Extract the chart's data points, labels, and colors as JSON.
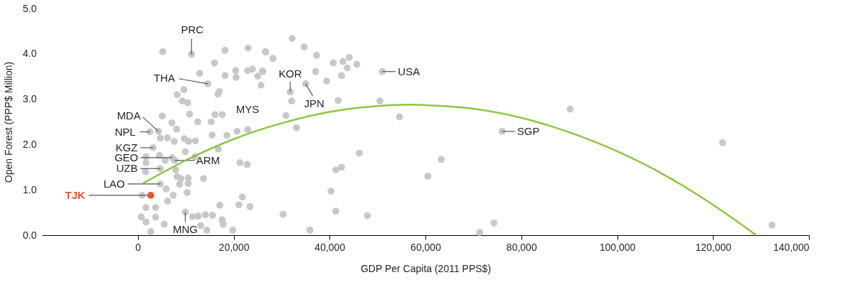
{
  "chart_data": {
    "type": "scatter",
    "xlabel": "GDP Per Capita (2011 PPS$)",
    "ylabel": "Open Forest (PPP$ Million)",
    "marker": "circle",
    "xlim": [
      -20000,
      140000
    ],
    "ylim": [
      0,
      5
    ],
    "xticks": [
      {
        "value": 0,
        "label": "0"
      },
      {
        "value": 20000,
        "label": "20,000"
      },
      {
        "value": 40000,
        "label": "40,000"
      },
      {
        "value": 60000,
        "label": "60,000"
      },
      {
        "value": 80000,
        "label": "80,000"
      },
      {
        "value": 100000,
        "label": "100,000"
      },
      {
        "value": 120000,
        "label": "120,000"
      },
      {
        "value": 140000,
        "label": "140,000"
      }
    ],
    "yticks": [
      {
        "value": 0,
        "label": "0.0"
      },
      {
        "value": 1,
        "label": "1.0"
      },
      {
        "value": 2,
        "label": "2.0"
      },
      {
        "value": 3,
        "label": "3.0"
      },
      {
        "value": 4,
        "label": "4.0"
      },
      {
        "value": 5,
        "label": "5.0"
      }
    ],
    "series": [
      {
        "type": "scatter",
        "color": "#c8c8ca",
        "x": [
          5200,
          11200,
          18200,
          23000,
          26700,
          16000,
          12900,
          18200,
          20400,
          20500,
          22900,
          23900,
          25000,
          26100,
          25700,
          14600,
          9600,
          8200,
          16700,
          17000,
          9300,
          10400,
          5100,
          10800,
          12500,
          16100,
          17600,
          15300,
          7100,
          8100,
          4300,
          2500,
          4700,
          6200,
          7600,
          9700,
          10600,
          12000,
          15500,
          18600,
          20700,
          22900,
          3200,
          9900,
          16800,
          4500,
          1700,
          7200,
          7700,
          11900,
          5700,
          21300,
          22800,
          1700,
          4700,
          7900,
          1600,
          4700,
          8200,
          9000,
          10500,
          13700,
          8700,
          10500,
          5900,
          7400,
          10300,
          6200,
          900,
          1700,
          3700,
          700,
          1700,
          3700,
          2700,
          5500,
          9900,
          11400,
          12600,
          14100,
          15600,
          17100,
          17600,
          17800,
          19800,
          13100,
          14400,
          21800,
          21100,
          23400,
          32200,
          34700,
          26600,
          28200,
          37300,
          40800,
          42800,
          44100,
          45700,
          43700,
          42500,
          26000,
          37100,
          39400,
          51000,
          35000,
          31800,
          32100,
          41800,
          50500,
          30900,
          54600,
          33100,
          46200,
          41300,
          42500,
          40300,
          30300,
          41300,
          47900,
          35900,
          63300,
          60500,
          76000,
          90200,
          122000,
          132300,
          74300,
          71300
        ],
        "values": [
          4.05,
          3.99,
          4.08,
          4.13,
          4.04,
          3.8,
          3.57,
          3.52,
          3.63,
          3.48,
          3.63,
          3.66,
          3.51,
          3.61,
          3.31,
          3.34,
          3.21,
          3.1,
          3.11,
          3.17,
          2.96,
          2.92,
          2.63,
          2.67,
          2.5,
          2.66,
          2.66,
          2.5,
          2.48,
          2.34,
          2.29,
          2.28,
          2.14,
          2.15,
          2.07,
          2.13,
          2.07,
          2.08,
          2.21,
          2.2,
          2.29,
          2.33,
          1.93,
          1.84,
          1.9,
          1.76,
          1.73,
          1.71,
          1.65,
          1.73,
          1.65,
          1.6,
          1.56,
          1.6,
          1.47,
          1.44,
          1.4,
          1.13,
          1.29,
          1.25,
          1.26,
          1.25,
          1.12,
          1.14,
          1.02,
          0.88,
          0.94,
          0.75,
          0.88,
          0.61,
          0.61,
          0.4,
          0.29,
          0.4,
          0.08,
          0.24,
          0.51,
          0.41,
          0.42,
          0.45,
          0.44,
          0.66,
          0.34,
          0.24,
          0.11,
          0.21,
          0.11,
          0.84,
          0.67,
          0.63,
          4.34,
          4.15,
          4.05,
          3.9,
          3.97,
          3.8,
          3.83,
          3.92,
          3.77,
          3.69,
          3.52,
          3.62,
          3.61,
          3.4,
          3.61,
          3.34,
          3.16,
          2.96,
          2.97,
          2.96,
          2.64,
          2.61,
          2.37,
          1.81,
          1.44,
          1.5,
          0.97,
          0.46,
          0.53,
          0.43,
          0.11,
          1.67,
          1.3,
          2.29,
          2.78,
          2.04,
          0.22,
          0.27,
          0.06
        ]
      },
      {
        "type": "scatter",
        "color": "#e8532a",
        "x": [
          2700
        ],
        "values": [
          0.88
        ]
      },
      {
        "type": "line",
        "marker": "none",
        "color": "#8cc63f",
        "x": [
          1000,
          10000,
          20000,
          30000,
          40000,
          50000,
          57000,
          60000,
          70000,
          80000,
          90000,
          100000,
          110000,
          120000,
          129000
        ],
        "values": [
          1.14,
          1.65,
          2.12,
          2.47,
          2.72,
          2.85,
          2.88,
          2.87,
          2.79,
          2.59,
          2.27,
          1.85,
          1.32,
          0.67,
          0.0
        ]
      }
    ],
    "annotations": [
      {
        "text": "PRC",
        "x": 11200,
        "y": 3.99
      },
      {
        "text": "THA",
        "x": 14600,
        "y": 3.34
      },
      {
        "text": "MDA",
        "x": 4300,
        "y": 2.29
      },
      {
        "text": "NPL",
        "x": 2500,
        "y": 2.28
      },
      {
        "text": "KGZ",
        "x": 3200,
        "y": 1.93
      },
      {
        "text": "GEO",
        "x": 7200,
        "y": 1.71
      },
      {
        "text": "UZB",
        "x": 4700,
        "y": 1.47
      },
      {
        "text": "LAO",
        "x": 4700,
        "y": 1.13
      },
      {
        "text": "TJK",
        "x": 2700,
        "y": 0.88
      },
      {
        "text": "MNG",
        "x": 9900,
        "y": 0.51
      },
      "MYS",
      {
        "text": "ARM",
        "x": 7700,
        "y": 1.65
      },
      {
        "text": "KOR",
        "x": 31800,
        "y": 3.16
      },
      {
        "text": "JPN",
        "x": 35000,
        "y": 3.34
      },
      {
        "text": "USA",
        "x": 51000,
        "y": 3.61
      },
      {
        "text": "SGP",
        "x": 76000,
        "y": 2.29
      }
    ]
  }
}
